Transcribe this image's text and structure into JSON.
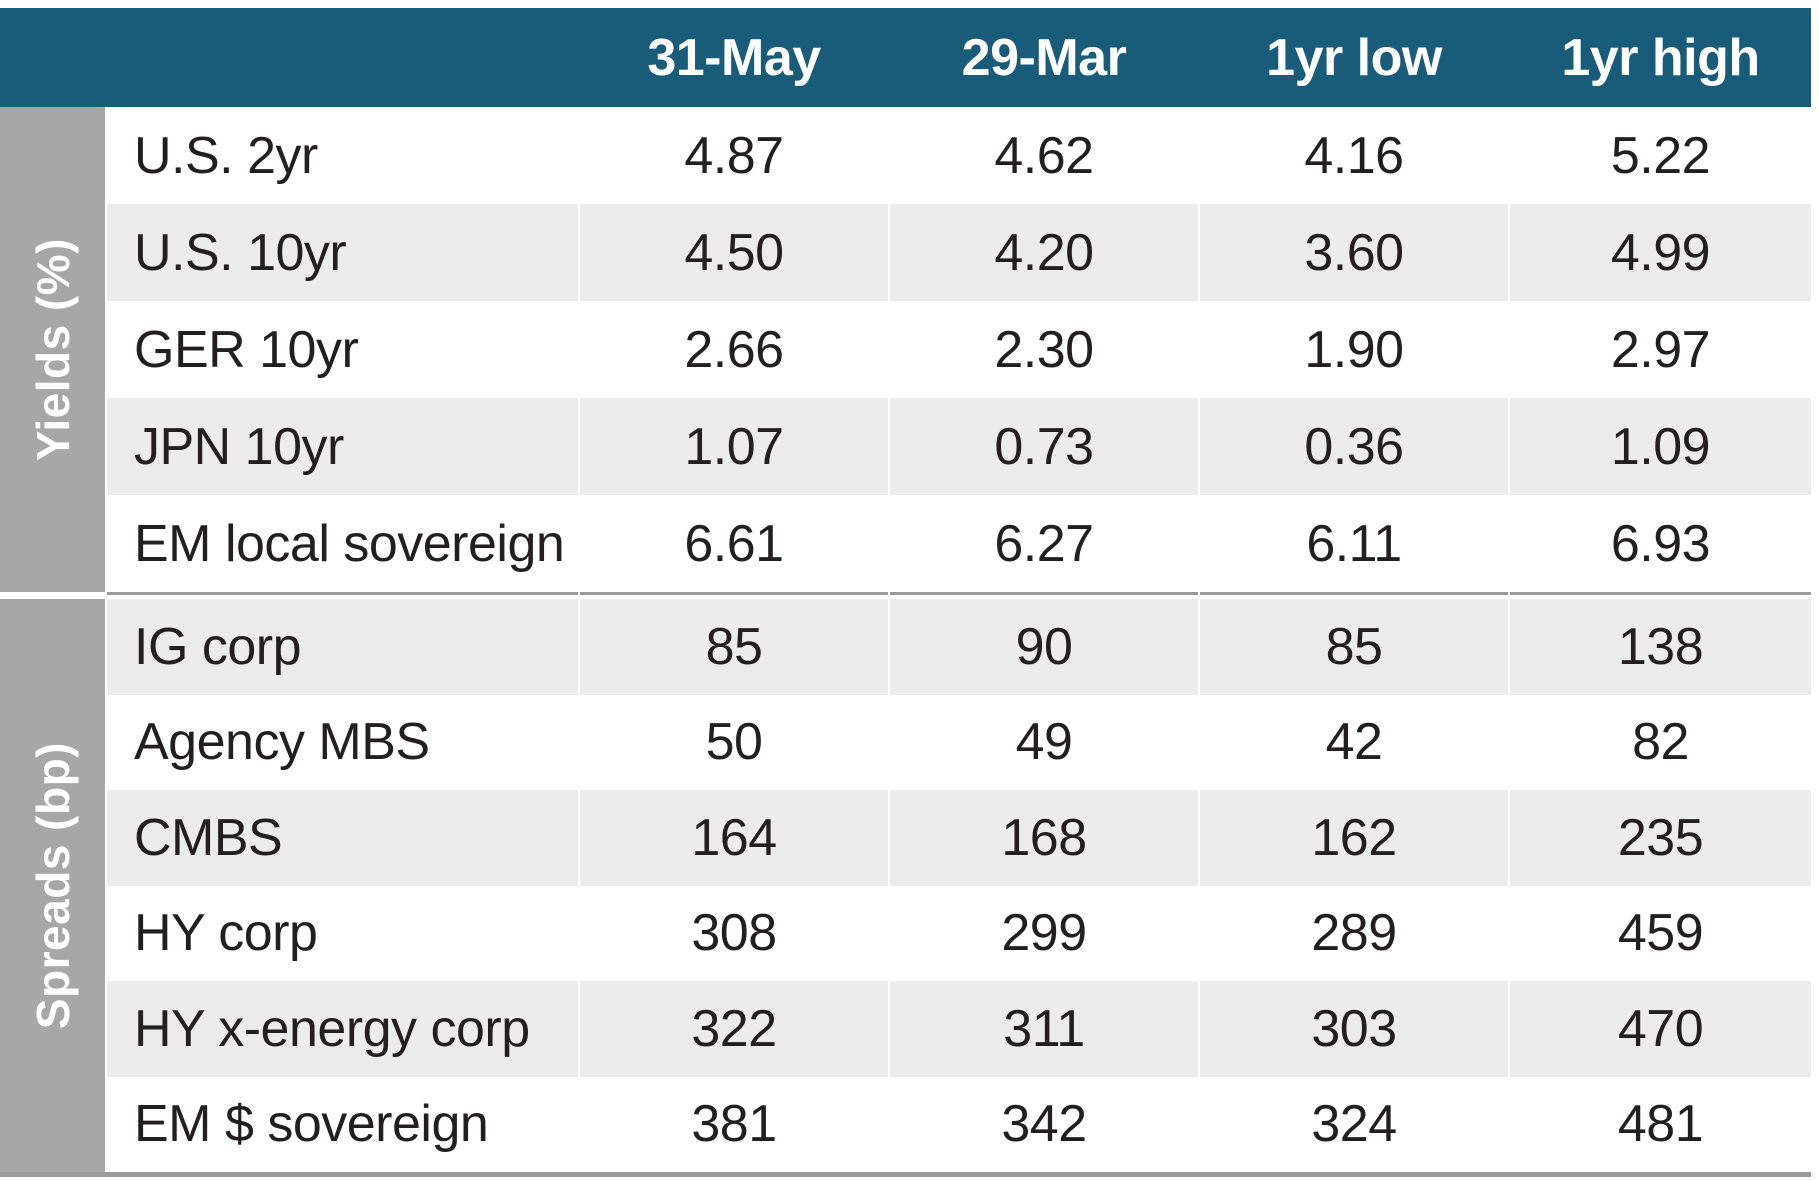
{
  "colors": {
    "header_bg": "#195c7a",
    "header_text": "#ffffff",
    "sidebar_bg": "#a7a7a7",
    "sidebar_text": "#ffffff",
    "row_bg": "#ffffff",
    "row_alt_bg": "#ececec",
    "divider_line": "#9a9a9a",
    "text": "#231f20"
  },
  "chart_data": {
    "type": "table",
    "columns": [
      "31-May",
      "29-Mar",
      "1yr low",
      "1yr high"
    ],
    "sections": [
      {
        "label": "Yields (%)",
        "rows": [
          {
            "label": "U.S. 2yr",
            "values": [
              "4.87",
              "4.62",
              "4.16",
              "5.22"
            ]
          },
          {
            "label": "U.S. 10yr",
            "values": [
              "4.50",
              "4.20",
              "3.60",
              "4.99"
            ]
          },
          {
            "label": "GER 10yr",
            "values": [
              "2.66",
              "2.30",
              "1.90",
              "2.97"
            ]
          },
          {
            "label": "JPN 10yr",
            "values": [
              "1.07",
              "0.73",
              "0.36",
              "1.09"
            ]
          },
          {
            "label": "EM local sovereign",
            "values": [
              "6.61",
              "6.27",
              "6.11",
              "6.93"
            ]
          }
        ]
      },
      {
        "label": "Spreads (bp)",
        "rows": [
          {
            "label": "IG corp",
            "values": [
              "85",
              "90",
              "85",
              "138"
            ]
          },
          {
            "label": "Agency MBS",
            "values": [
              "50",
              "49",
              "42",
              "82"
            ]
          },
          {
            "label": "CMBS",
            "values": [
              "164",
              "168",
              "162",
              "235"
            ]
          },
          {
            "label": "HY corp",
            "values": [
              "308",
              "299",
              "289",
              "459"
            ]
          },
          {
            "label": "HY x-energy corp",
            "values": [
              "322",
              "311",
              "303",
              "470"
            ]
          },
          {
            "label": "EM $ sovereign",
            "values": [
              "381",
              "342",
              "324",
              "481"
            ]
          }
        ]
      }
    ]
  }
}
